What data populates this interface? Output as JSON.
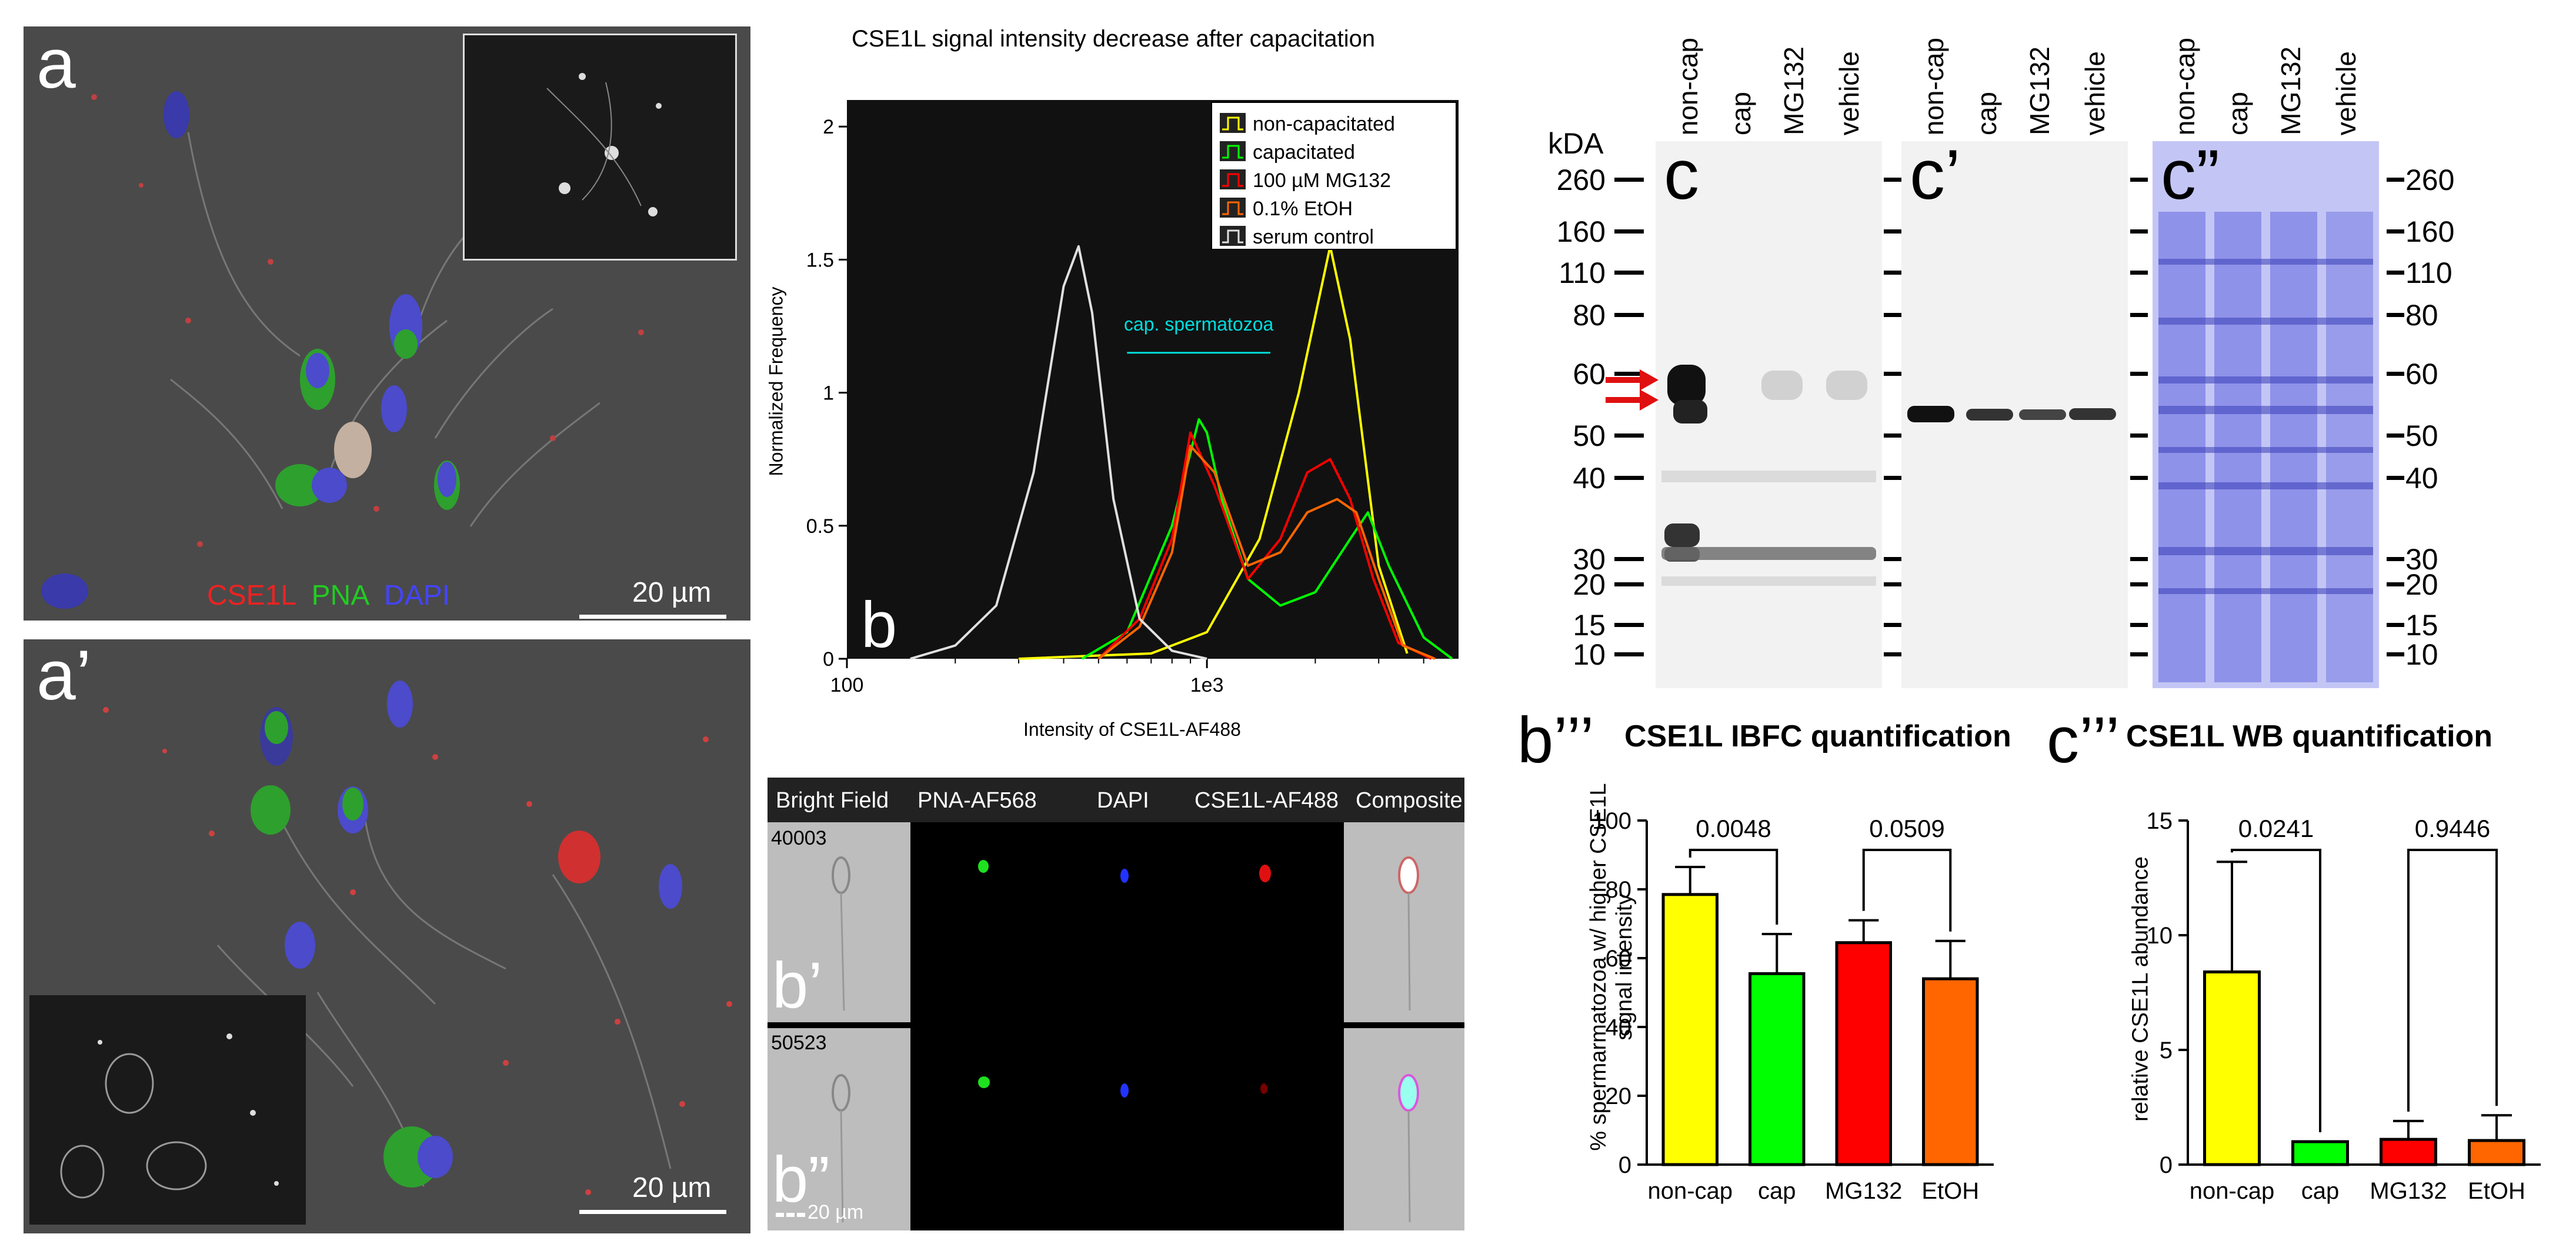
{
  "panels": {
    "a": {
      "letter": "a",
      "scale": "20 µm",
      "legend": {
        "red": "CSE1L",
        "green": "PNA",
        "blue": "DAPI"
      }
    },
    "a_prime": {
      "letter": "a’",
      "scale": "20 µm"
    },
    "b": {
      "letter": "b"
    },
    "b_prime": {
      "letter": "b’",
      "object_id": "40003"
    },
    "b_dprime": {
      "letter": "b”",
      "object_id": "50523",
      "scale": "20 µm"
    },
    "c": {
      "letter": "c"
    },
    "c_prime": {
      "letter": "c’"
    },
    "c_dprime": {
      "letter": "c”"
    },
    "b_tprime": {
      "letter": "b’’’",
      "title": "CSE1L IBFC quantification"
    },
    "c_tprime": {
      "letter": "c’’’",
      "title": "CSE1L WB quantification"
    }
  },
  "image_stream": {
    "channels": [
      "Bright Field",
      "PNA-AF568",
      "DAPI",
      "CSE1L-AF488",
      "Composite"
    ]
  },
  "western_blot": {
    "lanes": [
      "non-cap",
      "cap",
      "MG132",
      "vehicle"
    ],
    "kda_label": "kDA",
    "markers": [
      "260",
      "160",
      "110",
      "80",
      "60",
      "50",
      "40",
      "30",
      "20",
      "15",
      "10"
    ]
  },
  "colors": {
    "yellow": "#ffff00",
    "green": "#00ff00",
    "red": "#ff0000",
    "orange": "#ff6600",
    "grey": "#e0e0e0",
    "cyan": "#00dddd",
    "coomassie": "#8a8ff0"
  },
  "chart_data": [
    {
      "type": "line",
      "title": "CSE1L signal intensity decrease after capacitation",
      "xlabel": "Intensity of CSE1L-AF488",
      "ylabel": "Normalized Frequency",
      "xscale": "log",
      "xlim": [
        100,
        5000
      ],
      "ylim": [
        0,
        2.1
      ],
      "xticks": [
        "100",
        "1e3"
      ],
      "yticks": [
        "0",
        "0.5",
        "1",
        "1.5",
        "2"
      ],
      "annotation": "cap. spermatozoa",
      "legend": [
        "non-capacitated",
        "capacitated",
        "100 µM MG132",
        "0.1% EtOH",
        "serum control"
      ],
      "series": [
        {
          "name": "non-capacitated",
          "color": "#ffff00",
          "x": [
            300,
            700,
            1000,
            1400,
            1800,
            2200,
            2500,
            3000,
            3600
          ],
          "y": [
            0,
            0.02,
            0.1,
            0.45,
            1.0,
            1.55,
            1.2,
            0.35,
            0.02
          ]
        },
        {
          "name": "capacitated",
          "color": "#00ff00",
          "x": [
            450,
            600,
            800,
            950,
            1000,
            1100,
            1300,
            1600,
            2000,
            2500,
            2800,
            3200,
            4000,
            4800
          ],
          "y": [
            0,
            0.1,
            0.5,
            0.9,
            0.85,
            0.6,
            0.3,
            0.2,
            0.25,
            0.45,
            0.55,
            0.35,
            0.08,
            0.0
          ]
        },
        {
          "name": "100 µM MG132",
          "color": "#ff0000",
          "x": [
            500,
            650,
            800,
            900,
            1050,
            1300,
            1600,
            1900,
            2200,
            2500,
            2900,
            3400,
            4200
          ],
          "y": [
            0,
            0.15,
            0.45,
            0.85,
            0.65,
            0.3,
            0.45,
            0.7,
            0.75,
            0.6,
            0.3,
            0.06,
            0.0
          ]
        },
        {
          "name": "0.1% EtOH",
          "color": "#ff6600",
          "x": [
            500,
            650,
            800,
            900,
            1050,
            1300,
            1600,
            1900,
            2300,
            2600,
            3000,
            3500,
            4300
          ],
          "y": [
            0,
            0.12,
            0.4,
            0.8,
            0.7,
            0.35,
            0.4,
            0.55,
            0.6,
            0.55,
            0.3,
            0.05,
            0.0
          ]
        },
        {
          "name": "serum control",
          "color": "#e0e0e0",
          "x": [
            150,
            200,
            260,
            330,
            400,
            440,
            480,
            550,
            650,
            800,
            1000
          ],
          "y": [
            0.0,
            0.05,
            0.2,
            0.7,
            1.4,
            1.55,
            1.3,
            0.6,
            0.15,
            0.03,
            0.0
          ]
        }
      ]
    },
    {
      "type": "bar",
      "title": "CSE1L IBFC quantification",
      "ylabel": "% spermarmatozoa w/ higher CSE1L signal intensity",
      "categories": [
        "non-cap",
        "cap",
        "MG132",
        "EtOH"
      ],
      "values": [
        78.5,
        55.5,
        64.5,
        54
      ],
      "errors": [
        8,
        11.5,
        6.5,
        11
      ],
      "colors": [
        "#ffff00",
        "#00ff00",
        "#ff0000",
        "#ff6600"
      ],
      "ylim": [
        0,
        100
      ],
      "yticks": [
        "0",
        "20",
        "40",
        "60",
        "80",
        "100"
      ],
      "pvalues": [
        {
          "pair": [
            0,
            1
          ],
          "label": "0.0048"
        },
        {
          "pair": [
            2,
            3
          ],
          "label": "0.0509"
        }
      ]
    },
    {
      "type": "bar",
      "title": "CSE1L WB quantification",
      "ylabel": "relative CSE1L abundance",
      "categories": [
        "non-cap",
        "cap",
        "MG132",
        "EtOH"
      ],
      "values": [
        8.4,
        1.0,
        1.1,
        1.05
      ],
      "errors": [
        4.8,
        0.0,
        0.8,
        1.1
      ],
      "colors": [
        "#ffff00",
        "#00ff00",
        "#ff0000",
        "#ff6600"
      ],
      "ylim": [
        0,
        15
      ],
      "yticks": [
        "0",
        "5",
        "10",
        "15"
      ],
      "pvalues": [
        {
          "pair": [
            0,
            1
          ],
          "label": "0.0241"
        },
        {
          "pair": [
            2,
            3
          ],
          "label": "0.9446"
        }
      ]
    }
  ]
}
